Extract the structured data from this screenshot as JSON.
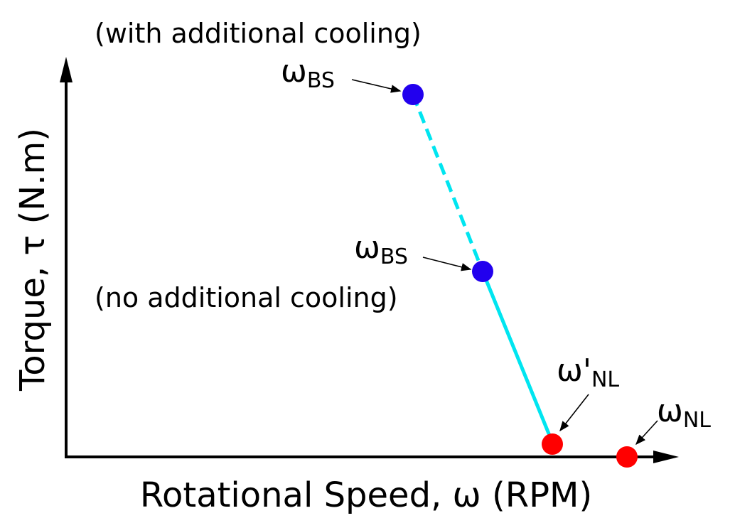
{
  "diagram": {
    "x_axis_label": "Rotational Speed, ω (RPM)",
    "y_axis_label": "Torque, τ (N.m)",
    "annotations": {
      "with_cooling": "(with additional cooling)",
      "no_cooling": "(no additional cooling)"
    },
    "points": {
      "bs_top": {
        "label_main": "ω",
        "label_sub": "BS",
        "color": "#2200ee"
      },
      "bs_mid": {
        "label_main": "ω",
        "label_sub": "BS",
        "color": "#2200ee"
      },
      "nl_prime": {
        "label_main": "ω'",
        "label_sub": "NL",
        "color": "#ff0000"
      },
      "nl": {
        "label_main": "ω",
        "label_sub": "NL",
        "color": "#ff0000"
      }
    },
    "line_color": "#00e5f0",
    "axis_color": "#000000"
  }
}
